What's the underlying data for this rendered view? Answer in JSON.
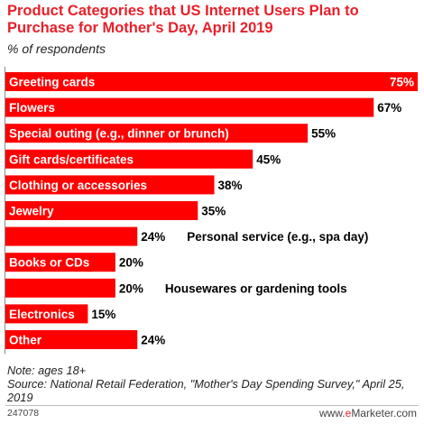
{
  "chart_data": {
    "type": "bar",
    "orientation": "horizontal",
    "title": "Product Categories that US Internet Users Plan to Purchase for Mother's Day, April 2019",
    "subtitle": "% of respondents",
    "categories": [
      "Greeting cards",
      "Flowers",
      "Special outing (e.g., dinner or brunch)",
      "Gift cards/certificates",
      "Clothing or accessories",
      "Jewelry",
      "Personal service (e.g., spa day)",
      "Books or CDs",
      "Housewares or gardening tools",
      "Electronics",
      "Other"
    ],
    "values": [
      75,
      67,
      55,
      45,
      38,
      35,
      24,
      20,
      20,
      15,
      24
    ],
    "value_labels": [
      "75%",
      "67%",
      "55%",
      "45%",
      "38%",
      "35%",
      "24%",
      "20%",
      "20%",
      "15%",
      "24%"
    ],
    "xlim": [
      0,
      75
    ],
    "bar_color": "#ff0000",
    "grid": false
  },
  "footer": {
    "note": "Note: ages 18+",
    "source": "Source: National Retail Federation, \"Mother's Day Spending Survey,\" April 25, 2019",
    "chart_id": "247078",
    "brand_prefix": "www.",
    "brand_e": "e",
    "brand_rest": "Marketer.com"
  },
  "colors": {
    "title": "#e8202a",
    "bar": "#ff0000"
  }
}
